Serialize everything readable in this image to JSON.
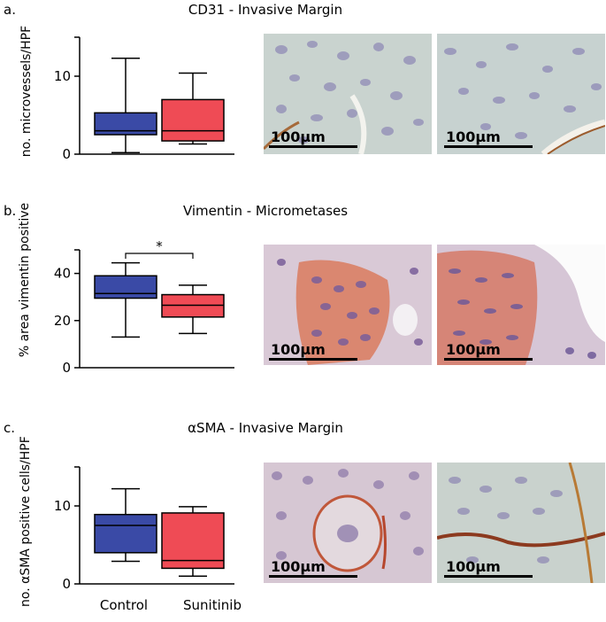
{
  "panels": [
    {
      "label": "a.",
      "title": "CD31 - Invasive Margin",
      "ylabel": "no. microvessels/HPF",
      "scalebar": "100μm",
      "images": [
        "cd31-control-micrograph",
        "cd31-sunitinib-micrograph"
      ],
      "significance": ""
    },
    {
      "label": "b.",
      "title": "Vimentin - Micrometases",
      "ylabel": "% area vimentin positive",
      "scalebar": "100μm",
      "images": [
        "vimentin-control-micrograph",
        "vimentin-sunitinib-micrograph"
      ],
      "significance": "*"
    },
    {
      "label": "c.",
      "title": "αSMA - Invasive Margin",
      "ylabel": "no. αSMA positive cells/HPF",
      "scalebar": "100μm",
      "images": [
        "asma-control-micrograph",
        "asma-sunitinib-micrograph"
      ],
      "significance": ""
    }
  ],
  "groups": [
    "Control",
    "Sunitinib"
  ],
  "colors": {
    "control": "#3a4aa6",
    "sunitinib": "#ef4b55"
  },
  "chart_data": [
    {
      "type": "box",
      "title": "CD31 - Invasive Margin",
      "ylabel": "no. microvessels/HPF",
      "categories": [
        "Control",
        "Sunitinib"
      ],
      "yticks": [
        0,
        10
      ],
      "ylim": [
        0,
        15
      ],
      "boxes": [
        {
          "name": "Control",
          "min": 0.2,
          "q1": 2.5,
          "median": 3,
          "q3": 5.3,
          "max": 12.3
        },
        {
          "name": "Sunitinib",
          "min": 1.3,
          "q1": 1.7,
          "median": 3,
          "q3": 7,
          "max": 10.4
        }
      ]
    },
    {
      "type": "box",
      "title": "Vimentin - Micrometases",
      "ylabel": "% area vimentin positive",
      "categories": [
        "Control",
        "Sunitinib"
      ],
      "yticks": [
        0,
        20,
        40
      ],
      "ylim": [
        0,
        50
      ],
      "boxes": [
        {
          "name": "Control",
          "min": 13,
          "q1": 29.5,
          "median": 31.5,
          "q3": 39,
          "max": 44.5
        },
        {
          "name": "Sunitinib",
          "min": 14.5,
          "q1": 21.5,
          "median": 26.5,
          "q3": 31,
          "max": 35
        }
      ],
      "annotation": "*"
    },
    {
      "type": "box",
      "title": "αSMA - Invasive Margin",
      "ylabel": "no. αSMA positive cells/HPF",
      "categories": [
        "Control",
        "Sunitinib"
      ],
      "yticks": [
        0,
        10
      ],
      "ylim": [
        0,
        15
      ],
      "boxes": [
        {
          "name": "Control",
          "min": 2.9,
          "q1": 4,
          "median": 7.5,
          "q3": 8.9,
          "max": 12.2
        },
        {
          "name": "Sunitinib",
          "min": 1,
          "q1": 2,
          "median": 3,
          "q3": 9.1,
          "max": 9.9
        }
      ]
    }
  ]
}
